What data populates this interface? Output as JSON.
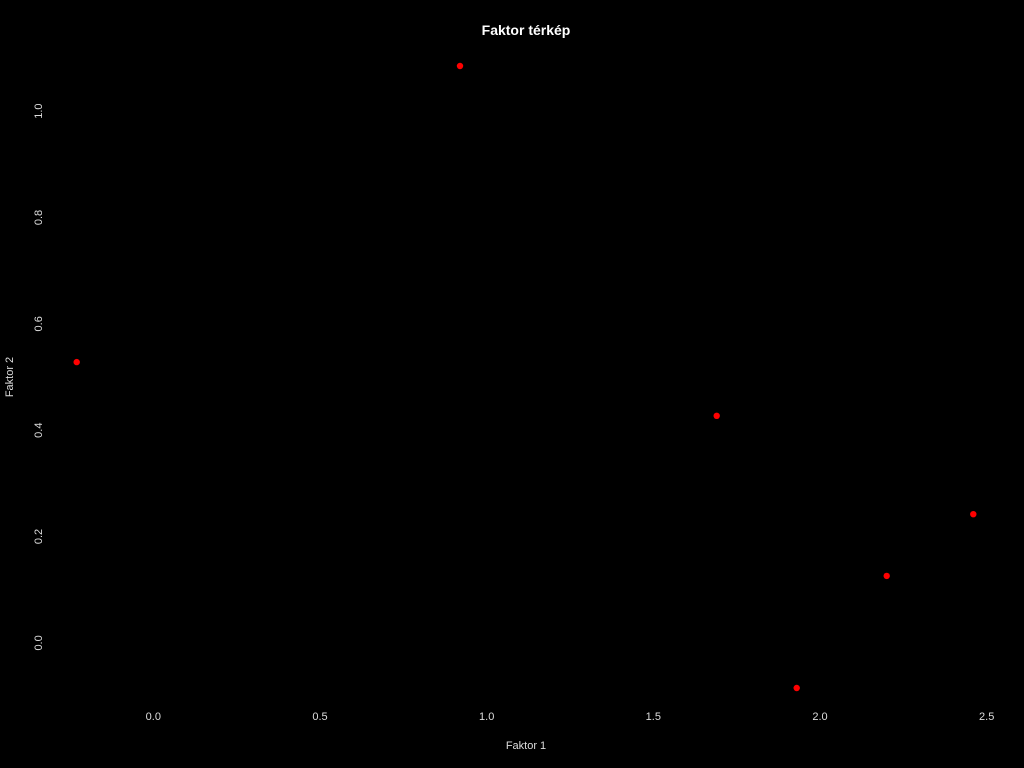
{
  "chart_data": {
    "type": "scatter",
    "title": "Faktor térkép",
    "xlabel": "Faktor 1",
    "ylabel": "Faktor 2",
    "xlim": [
      -0.28,
      2.54
    ],
    "ylim": [
      -0.115,
      1.115
    ],
    "x_ticks": [
      {
        "value": 0.0,
        "label": "0.0"
      },
      {
        "value": 0.5,
        "label": "0.5"
      },
      {
        "value": 1.0,
        "label": "1.0"
      },
      {
        "value": 1.5,
        "label": "1.5"
      },
      {
        "value": 2.0,
        "label": "2.0"
      },
      {
        "value": 2.5,
        "label": "2.5"
      }
    ],
    "y_ticks": [
      {
        "value": 0.0,
        "label": "0.0"
      },
      {
        "value": 0.2,
        "label": "0.2"
      },
      {
        "value": 0.4,
        "label": "0.4"
      },
      {
        "value": 0.6,
        "label": "0.6"
      },
      {
        "value": 0.8,
        "label": "0.8"
      },
      {
        "value": 1.0,
        "label": "1.0"
      }
    ],
    "grid": false,
    "legend": "none",
    "point_color": "#ff0000",
    "background": "#000000",
    "text_color": "#dddddd",
    "points": [
      {
        "x": -0.23,
        "y": 0.528
      },
      {
        "x": 0.92,
        "y": 1.085
      },
      {
        "x": 1.69,
        "y": 0.427
      },
      {
        "x": 1.93,
        "y": -0.085
      },
      {
        "x": 2.2,
        "y": 0.126
      },
      {
        "x": 2.46,
        "y": 0.242
      }
    ]
  }
}
